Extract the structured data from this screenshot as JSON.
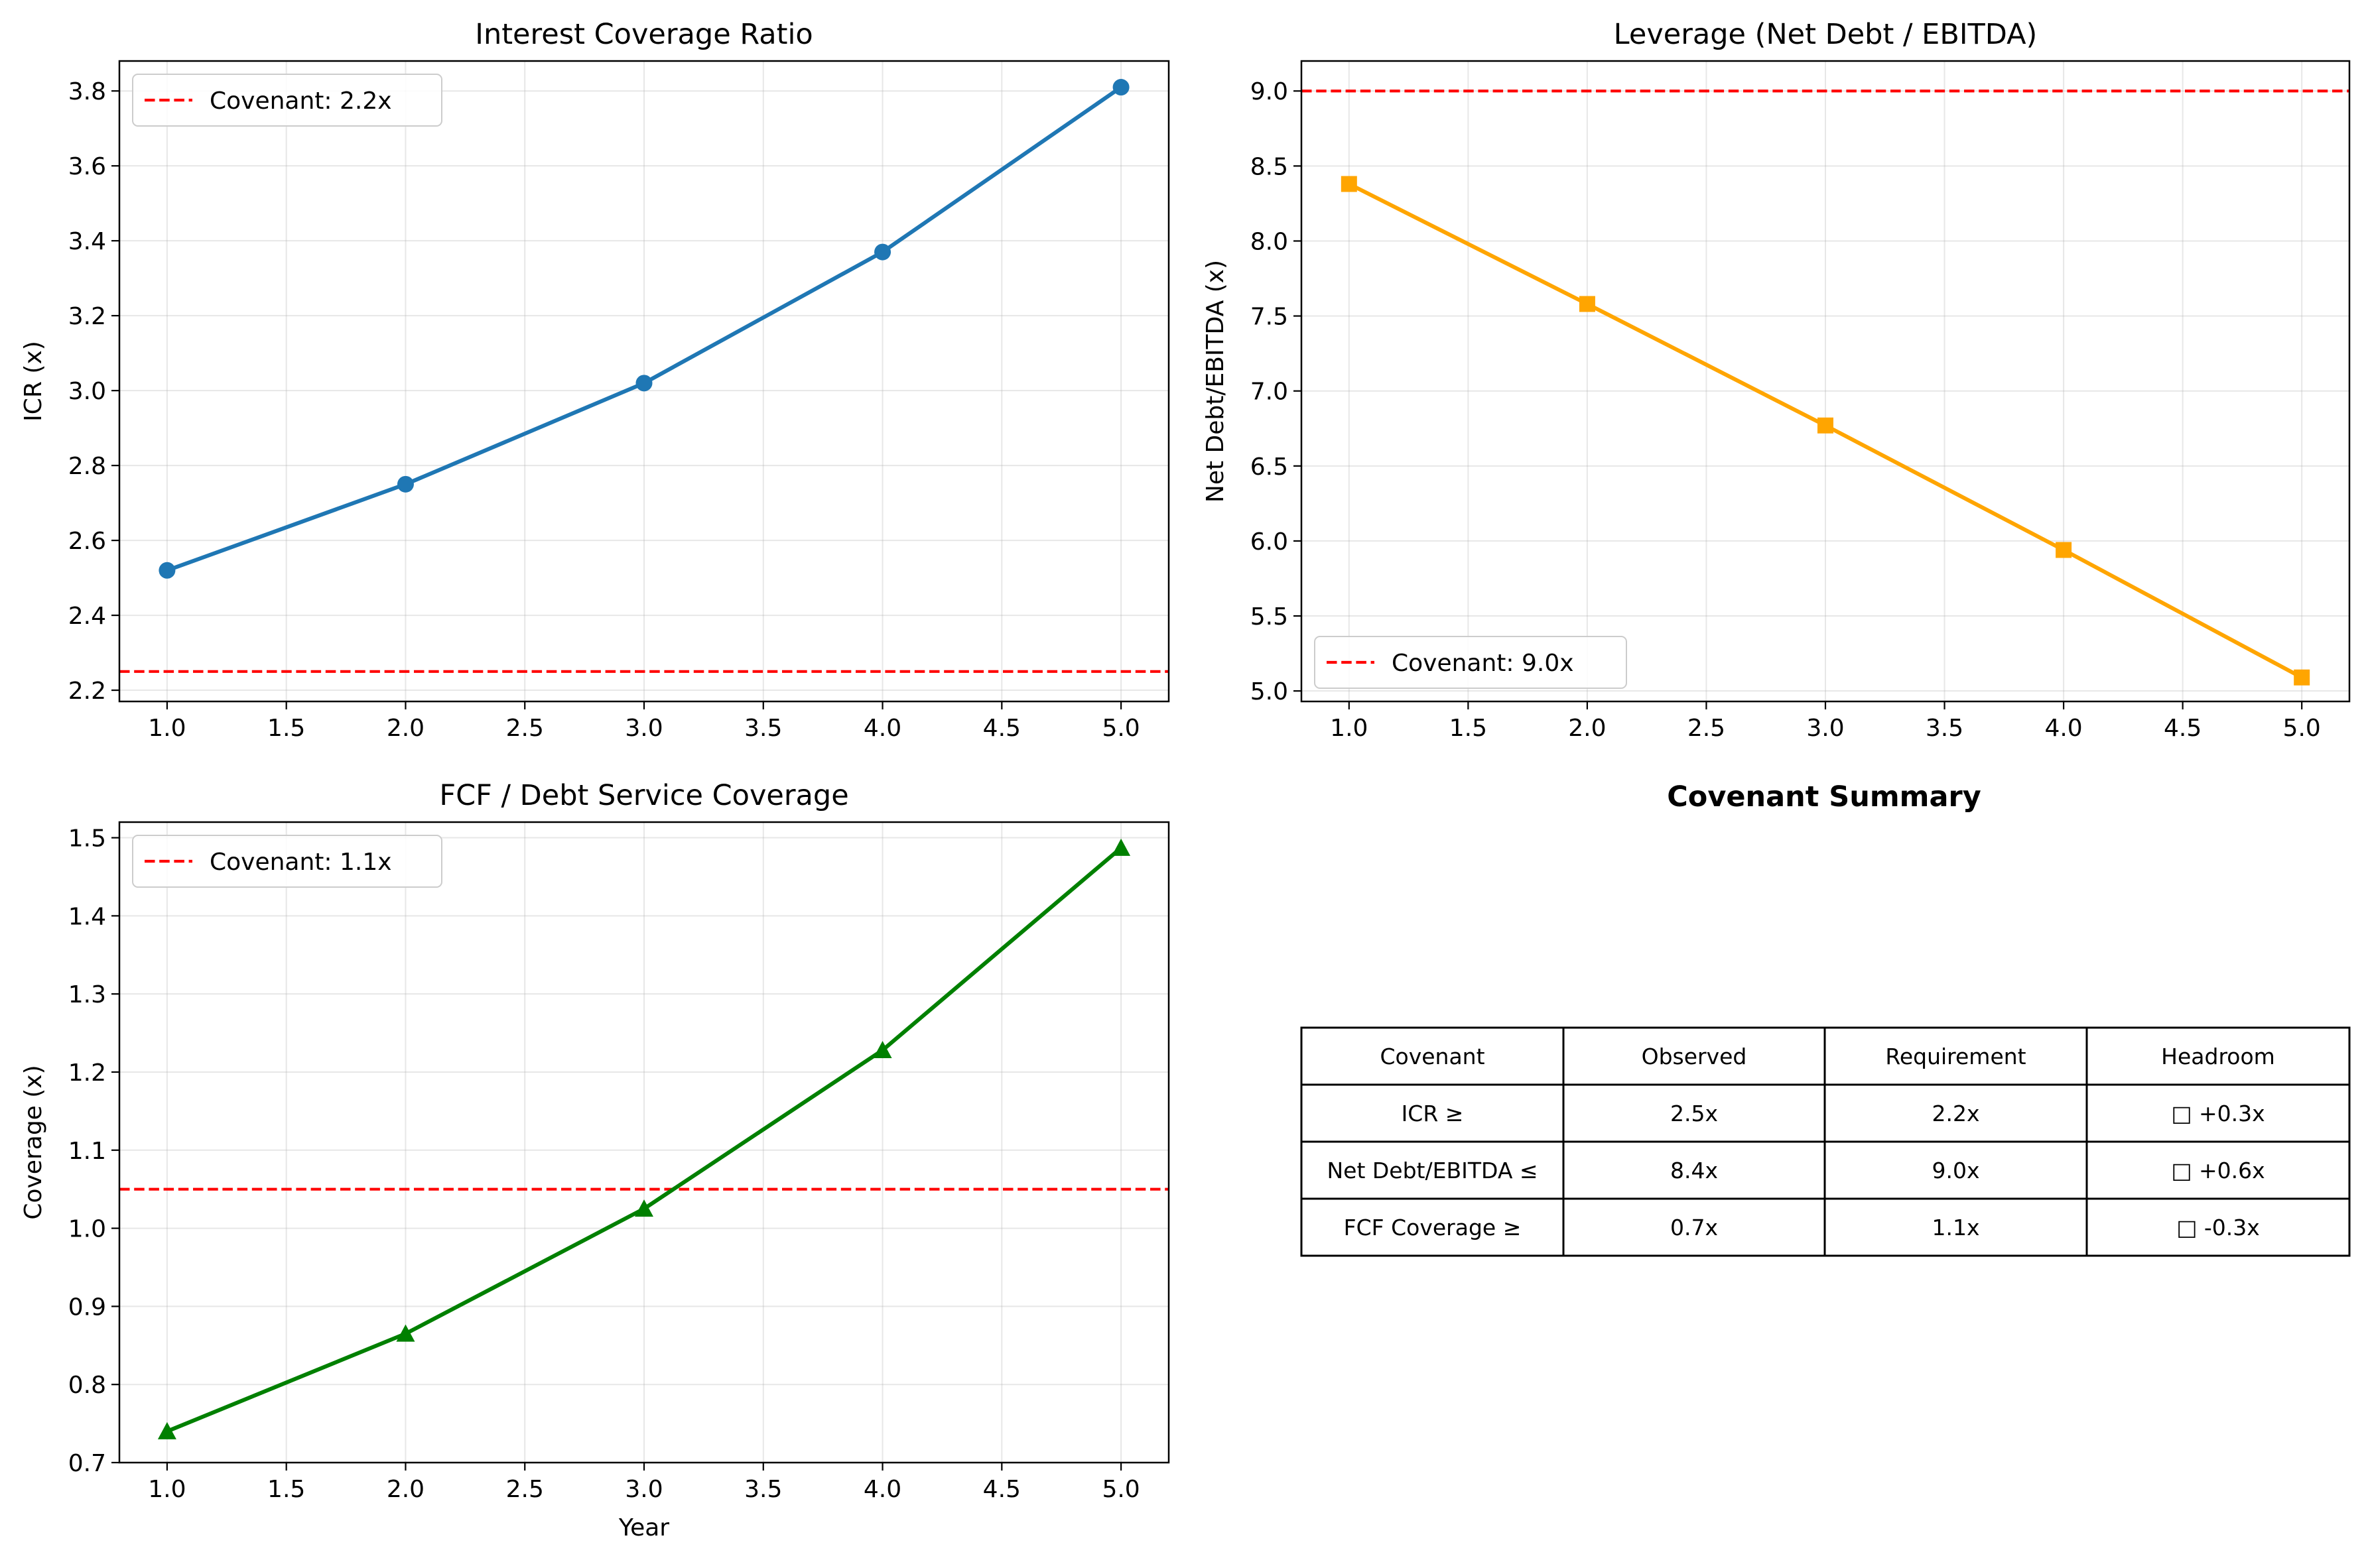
{
  "chart_data": [
    {
      "type": "line",
      "title": "Interest Coverage Ratio",
      "xlabel": "",
      "ylabel": "ICR (x)",
      "xlim": [
        0.8,
        5.2
      ],
      "ylim": [
        2.17,
        3.88
      ],
      "xticks": [
        1.0,
        1.5,
        2.0,
        2.5,
        3.0,
        3.5,
        4.0,
        4.5,
        5.0
      ],
      "yticks": [
        2.2,
        2.4,
        2.6,
        2.8,
        3.0,
        3.2,
        3.4,
        3.6,
        3.8
      ],
      "grid": true,
      "legend_position": "top-left",
      "line_color": "#1f77b4",
      "marker": "circle",
      "x": [
        1,
        2,
        3,
        4,
        5
      ],
      "y": [
        2.52,
        2.75,
        3.02,
        3.37,
        3.81
      ],
      "threshold": {
        "value": 2.25,
        "label": "Covenant: 2.2x",
        "color": "#ff0000"
      }
    },
    {
      "type": "line",
      "title": "Leverage (Net Debt / EBITDA)",
      "xlabel": "",
      "ylabel": "Net Debt/EBITDA (x)",
      "xlim": [
        0.8,
        5.2
      ],
      "ylim": [
        4.93,
        9.2
      ],
      "xticks": [
        1.0,
        1.5,
        2.0,
        2.5,
        3.0,
        3.5,
        4.0,
        4.5,
        5.0
      ],
      "yticks": [
        5.0,
        5.5,
        6.0,
        6.5,
        7.0,
        7.5,
        8.0,
        8.5,
        9.0
      ],
      "grid": true,
      "legend_position": "bottom-left",
      "line_color": "#ffa500",
      "marker": "square",
      "x": [
        1,
        2,
        3,
        4,
        5
      ],
      "y": [
        8.38,
        7.58,
        6.77,
        5.94,
        5.09
      ],
      "threshold": {
        "value": 9.0,
        "label": "Covenant: 9.0x",
        "color": "#ff0000"
      }
    },
    {
      "type": "line",
      "title": "FCF / Debt Service Coverage",
      "xlabel": "Year",
      "ylabel": "Coverage (x)",
      "xlim": [
        0.8,
        5.2
      ],
      "ylim": [
        0.7,
        1.52
      ],
      "xticks": [
        1.0,
        1.5,
        2.0,
        2.5,
        3.0,
        3.5,
        4.0,
        4.5,
        5.0
      ],
      "yticks": [
        0.7,
        0.8,
        0.9,
        1.0,
        1.1,
        1.2,
        1.3,
        1.4,
        1.5
      ],
      "grid": true,
      "legend_position": "top-left",
      "line_color": "#008000",
      "marker": "triangle",
      "x": [
        1,
        2,
        3,
        4,
        5
      ],
      "y": [
        0.74,
        0.865,
        1.025,
        1.228,
        1.487
      ],
      "threshold": {
        "value": 1.05,
        "label": "Covenant: 1.1x",
        "color": "#ff0000"
      }
    },
    {
      "type": "table",
      "title": "Covenant Summary",
      "columns": [
        "Covenant",
        "Observed",
        "Requirement",
        "Headroom"
      ],
      "rows": [
        [
          "ICR ≥",
          "2.5x",
          "2.2x",
          "□ +0.3x"
        ],
        [
          "Net Debt/EBITDA ≤",
          "8.4x",
          "9.0x",
          "□ +0.6x"
        ],
        [
          "FCF Coverage ≥",
          "0.7x",
          "1.1x",
          "□ -0.3x"
        ]
      ]
    }
  ]
}
